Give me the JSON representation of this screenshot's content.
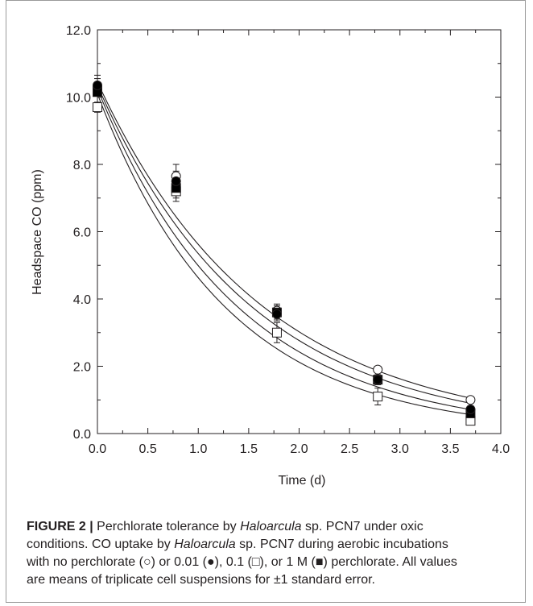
{
  "chart_data": {
    "type": "scatter",
    "xlabel": "Time (d)",
    "ylabel": "Headspace CO (ppm)",
    "xlim": [
      0,
      4
    ],
    "ylim": [
      0,
      12
    ],
    "x_ticks": [
      "0.0",
      "0.5",
      "1.0",
      "1.5",
      "2.0",
      "2.5",
      "3.0",
      "3.5",
      "4.0"
    ],
    "y_ticks": [
      "0.0",
      "2.0",
      "4.0",
      "6.0",
      "8.0",
      "10.0",
      "12.0"
    ],
    "grid": false,
    "series": [
      {
        "marker": "open-circle",
        "x": [
          0.0,
          0.78,
          1.78,
          2.78,
          3.7
        ],
        "y": [
          10.3,
          7.65,
          3.65,
          1.9,
          1.0
        ],
        "err": [
          0.25,
          0.35,
          0.2,
          0.1,
          0.08
        ]
      },
      {
        "marker": "filled-circle",
        "x": [
          0.0,
          0.78,
          1.78,
          2.78,
          3.7
        ],
        "y": [
          10.35,
          7.5,
          3.55,
          1.6,
          0.72
        ],
        "err": [
          0.2,
          0.3,
          0.2,
          0.12,
          0.1
        ]
      },
      {
        "marker": "open-square",
        "x": [
          0.0,
          0.78,
          1.78,
          2.78,
          3.7
        ],
        "y": [
          9.7,
          7.2,
          3.0,
          1.1,
          0.38
        ],
        "err": [
          0.15,
          0.3,
          0.3,
          0.25,
          0.1
        ]
      },
      {
        "marker": "filled-square",
        "x": [
          0.0,
          0.78,
          1.78,
          2.78,
          3.7
        ],
        "y": [
          10.15,
          7.3,
          3.6,
          1.6,
          0.6
        ],
        "err": [
          0.5,
          0.3,
          0.2,
          0.15,
          0.1
        ]
      }
    ],
    "fits": [
      {
        "y0": 10.45,
        "k": 0.62
      },
      {
        "y0": 10.35,
        "k": 0.66
      },
      {
        "y0": 10.25,
        "k": 0.72
      },
      {
        "y0": 10.1,
        "k": 0.78
      }
    ],
    "colors": {
      "ink": "#231f20"
    }
  },
  "caption": {
    "label": "FIGURE 2 |",
    "line1_a": "Perchlorate tolerance by",
    "line1_italic1": "Haloarcula",
    "line1_b": "sp. PCN7 under oxic",
    "line2_a": "conditions. CO uptake by",
    "line2_italic": "Haloarcula",
    "line2_b": "sp. PCN7 during aerobic incubations",
    "line3": "with no perchlorate (○) or 0.01 (●), 0.1 (□), or 1 M (■) perchlorate. All values",
    "line4": "are means of triplicate cell suspensions for ±1 standard error."
  }
}
